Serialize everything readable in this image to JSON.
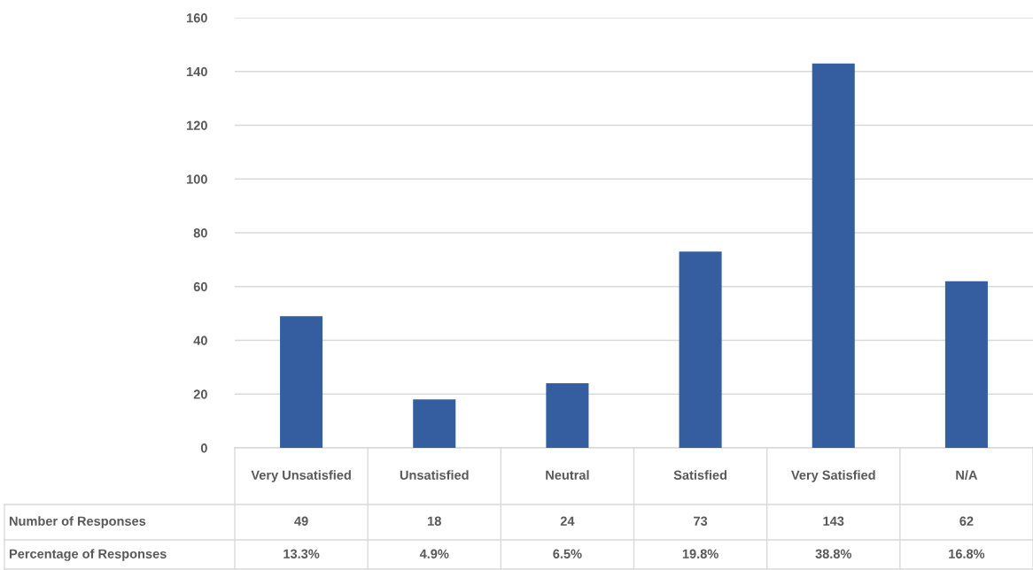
{
  "chart_data": {
    "type": "bar",
    "categories": [
      "Very Unsatisfied",
      "Unsatisfied",
      "Neutral",
      "Satisfied",
      "Very Satisfied",
      "N/A"
    ],
    "series": [
      {
        "name": "Number of Responses",
        "color": "#355ea0",
        "values": [
          49,
          18,
          24,
          73,
          143,
          62
        ]
      }
    ],
    "data_labels": true,
    "ylim": [
      0,
      160
    ],
    "yticks": [
      0,
      20,
      40,
      60,
      80,
      100,
      120,
      140,
      160
    ],
    "grid": "y",
    "legend": false,
    "annotations": [
      "Percentage of Responses",
      "13.3%",
      "4.9%",
      "6.5%",
      "19.8%",
      "38.8%",
      "16.8%"
    ]
  }
}
